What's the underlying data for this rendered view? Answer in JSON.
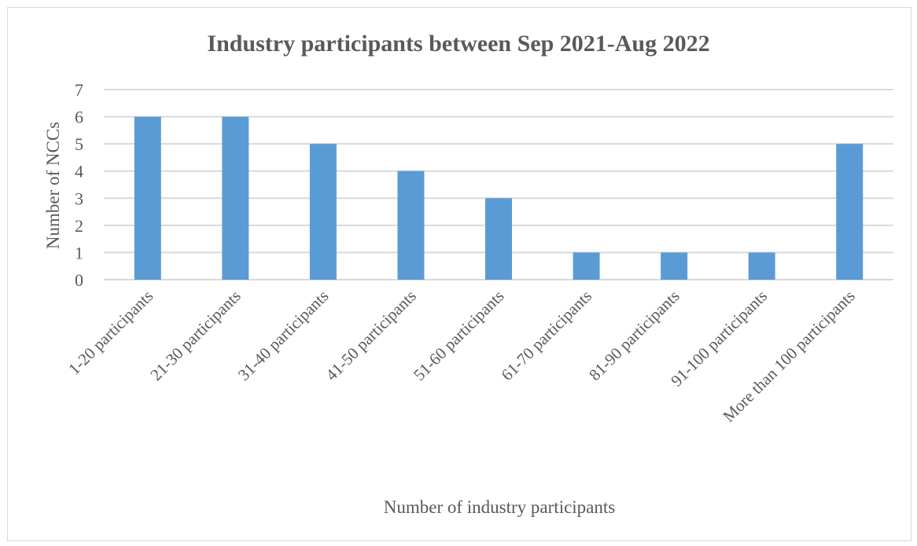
{
  "chart_data": {
    "type": "bar",
    "title": "Industry participants between Sep 2021-Aug 2022",
    "xlabel": "Number of industry participants",
    "ylabel": "Number of NCCs",
    "categories": [
      "1-20 participants",
      "21-30 participants",
      "31-40 participants",
      "41-50 participants",
      "51-60 participants",
      "61-70 participants",
      "81-90 participants",
      "91-100 participants",
      "More than 100 participants"
    ],
    "values": [
      6,
      6,
      5,
      4,
      3,
      1,
      1,
      1,
      5
    ],
    "ylim": [
      0,
      7
    ],
    "yticks": [
      0,
      1,
      2,
      3,
      4,
      5,
      6,
      7
    ],
    "grid": true,
    "legend": "none",
    "colors": {
      "bar": "#5b9bd5",
      "grid": "#d9d9d9",
      "text": "#595959"
    }
  }
}
